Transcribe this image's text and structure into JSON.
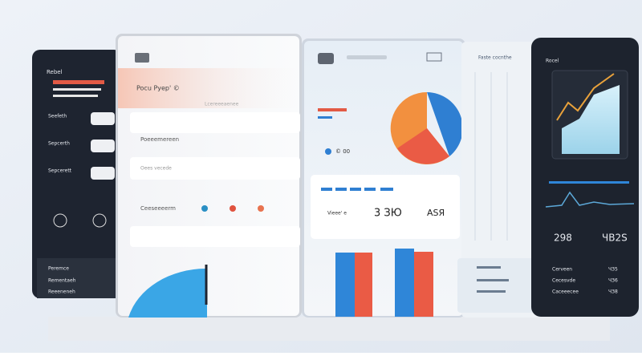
{
  "left_phone": {
    "title": "Rebel",
    "items": [
      "Seefeth",
      "Sepcerth",
      "Sepcerett"
    ],
    "footer": [
      "Peremce",
      "Rementaeh",
      "Reeeneneh"
    ]
  },
  "left_panel": {
    "heading": "Pocu Pyep' ©",
    "rows": [
      "Poeeemereen",
      "Oees vecede",
      "Ceeseeeerm",
      "Lcereeeaenee"
    ]
  },
  "center_panel": {
    "pie_caption": "© 00",
    "stat_label": "Vieee' e",
    "stat_value": "3 ЗЮ",
    "stat_value_2": "ASЯ"
  },
  "right_panel": {
    "title": "Faste cocnthe"
  },
  "right_phone": {
    "title": "Rocel",
    "stats": [
      "298",
      "ЧB2S"
    ],
    "rows": [
      "Cerveen",
      "Cecesvde",
      "Caceeecee"
    ],
    "row_values": [
      "ЧЗ5",
      "ЧЗ6",
      "ЧЗ8"
    ]
  }
}
